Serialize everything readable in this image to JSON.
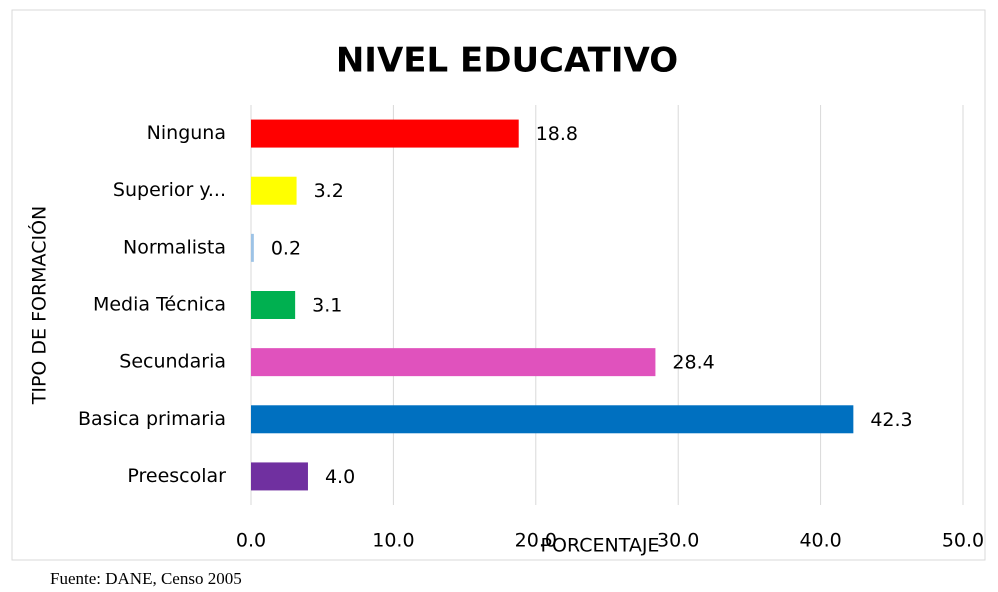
{
  "chart_data": {
    "type": "barh",
    "title": "NIVEL EDUCATIVO",
    "xlabel": "PORCENTAJE",
    "ylabel": "TIPO DE FORMACIÓN",
    "categories": [
      "Ninguna",
      "Superior y...",
      "Normalista",
      "Media Técnica",
      "Secundaria",
      "Basica primaria",
      "Preescolar"
    ],
    "values": [
      18.8,
      3.2,
      0.2,
      3.1,
      28.4,
      42.3,
      4.0
    ],
    "value_labels": [
      "18.8",
      "3.2",
      "0.2",
      "3.1",
      "28.4",
      "42.3",
      "4.0"
    ],
    "colors": [
      "#ff0000",
      "#ffff00",
      "#9dc3e6",
      "#00b050",
      "#e052bd",
      "#0070c0",
      "#7030a0"
    ],
    "xlim": [
      0,
      50
    ],
    "xticks": [
      {
        "value": 0,
        "label": "0.0"
      },
      {
        "value": 10,
        "label": "10.0"
      },
      {
        "value": 20,
        "label": "20.0"
      },
      {
        "value": 30,
        "label": "30.0"
      },
      {
        "value": 40,
        "label": "40.0"
      },
      {
        "value": 50,
        "label": "50.0"
      }
    ],
    "grid": true,
    "source": "Fuente: DANE, Censo 2005"
  }
}
